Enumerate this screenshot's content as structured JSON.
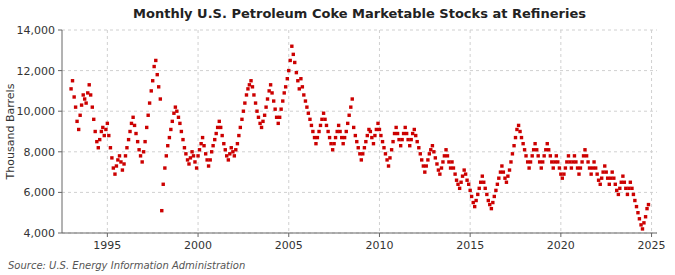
{
  "chart_data": {
    "type": "scatter",
    "title": "Monthly U.S. Petroleum Coke Marketable Stocks at Refineries",
    "y_label": "Thousand Barrels",
    "annotations": [
      "Source: U.S. Energy Information Administration"
    ],
    "color": "#CC0000",
    "marker": "square",
    "grid": true,
    "xlim": [
      1992.5,
      2025.3
    ],
    "ylim": [
      4000,
      14000
    ],
    "xticks": [
      1995,
      2000,
      2005,
      2010,
      2015,
      2020,
      2025
    ],
    "yticks": [
      {
        "value": 4000,
        "label": "4,000"
      },
      {
        "value": 6000,
        "label": "6,000"
      },
      {
        "value": 8000,
        "label": "8,000"
      },
      {
        "value": 10000,
        "label": "10,000"
      },
      {
        "value": 12000,
        "label": "12,000"
      },
      {
        "value": 14000,
        "label": "14,000"
      }
    ],
    "x": [
      1993.0,
      1993.08,
      1993.17,
      1993.25,
      1993.33,
      1993.42,
      1993.5,
      1993.58,
      1993.67,
      1993.75,
      1993.83,
      1993.92,
      1994.0,
      1994.08,
      1994.17,
      1994.25,
      1994.33,
      1994.42,
      1994.5,
      1994.58,
      1994.67,
      1994.75,
      1994.83,
      1994.92,
      1995.0,
      1995.08,
      1995.17,
      1995.25,
      1995.33,
      1995.42,
      1995.5,
      1995.58,
      1995.67,
      1995.75,
      1995.83,
      1995.92,
      1996.0,
      1996.08,
      1996.17,
      1996.25,
      1996.33,
      1996.42,
      1996.5,
      1996.58,
      1996.67,
      1996.75,
      1996.83,
      1996.92,
      1997.0,
      1997.08,
      1997.17,
      1997.25,
      1997.33,
      1997.42,
      1997.5,
      1997.58,
      1997.67,
      1997.75,
      1997.83,
      1997.92,
      1998.0,
      1998.08,
      1998.17,
      1998.25,
      1998.33,
      1998.42,
      1998.5,
      1998.58,
      1998.67,
      1998.75,
      1998.83,
      1998.92,
      1999.0,
      1999.08,
      1999.17,
      1999.25,
      1999.33,
      1999.42,
      1999.5,
      1999.58,
      1999.67,
      1999.75,
      1999.83,
      1999.92,
      2000.0,
      2000.08,
      2000.17,
      2000.25,
      2000.33,
      2000.42,
      2000.5,
      2000.58,
      2000.67,
      2000.75,
      2000.83,
      2000.92,
      2001.0,
      2001.08,
      2001.17,
      2001.25,
      2001.33,
      2001.42,
      2001.5,
      2001.58,
      2001.67,
      2001.75,
      2001.83,
      2001.92,
      2002.0,
      2002.08,
      2002.17,
      2002.25,
      2002.33,
      2002.42,
      2002.5,
      2002.58,
      2002.67,
      2002.75,
      2002.83,
      2002.92,
      2003.0,
      2003.08,
      2003.17,
      2003.25,
      2003.33,
      2003.42,
      2003.5,
      2003.58,
      2003.67,
      2003.75,
      2003.83,
      2003.92,
      2004.0,
      2004.08,
      2004.17,
      2004.25,
      2004.33,
      2004.42,
      2004.5,
      2004.58,
      2004.67,
      2004.75,
      2004.83,
      2004.92,
      2005.0,
      2005.08,
      2005.17,
      2005.25,
      2005.33,
      2005.42,
      2005.5,
      2005.58,
      2005.67,
      2005.75,
      2005.83,
      2005.92,
      2006.0,
      2006.08,
      2006.17,
      2006.25,
      2006.33,
      2006.42,
      2006.5,
      2006.58,
      2006.67,
      2006.75,
      2006.83,
      2006.92,
      2007.0,
      2007.08,
      2007.17,
      2007.25,
      2007.33,
      2007.42,
      2007.5,
      2007.58,
      2007.67,
      2007.75,
      2007.83,
      2007.92,
      2008.0,
      2008.08,
      2008.17,
      2008.25,
      2008.33,
      2008.42,
      2008.5,
      2008.58,
      2008.67,
      2008.75,
      2008.83,
      2008.92,
      2009.0,
      2009.08,
      2009.17,
      2009.25,
      2009.33,
      2009.42,
      2009.5,
      2009.58,
      2009.67,
      2009.75,
      2009.83,
      2009.92,
      2010.0,
      2010.08,
      2010.17,
      2010.25,
      2010.33,
      2010.42,
      2010.5,
      2010.58,
      2010.67,
      2010.75,
      2010.83,
      2010.92,
      2011.0,
      2011.08,
      2011.17,
      2011.25,
      2011.33,
      2011.42,
      2011.5,
      2011.58,
      2011.67,
      2011.75,
      2011.83,
      2011.92,
      2012.0,
      2012.08,
      2012.17,
      2012.25,
      2012.33,
      2012.42,
      2012.5,
      2012.58,
      2012.67,
      2012.75,
      2012.83,
      2012.92,
      2013.0,
      2013.08,
      2013.17,
      2013.25,
      2013.33,
      2013.42,
      2013.5,
      2013.58,
      2013.67,
      2013.75,
      2013.83,
      2013.92,
      2014.0,
      2014.08,
      2014.17,
      2014.25,
      2014.33,
      2014.42,
      2014.5,
      2014.58,
      2014.67,
      2014.75,
      2014.83,
      2014.92,
      2015.0,
      2015.08,
      2015.17,
      2015.25,
      2015.33,
      2015.42,
      2015.5,
      2015.58,
      2015.67,
      2015.75,
      2015.83,
      2015.92,
      2016.0,
      2016.08,
      2016.17,
      2016.25,
      2016.33,
      2016.42,
      2016.5,
      2016.58,
      2016.67,
      2016.75,
      2016.83,
      2016.92,
      2017.0,
      2017.08,
      2017.17,
      2017.25,
      2017.33,
      2017.42,
      2017.5,
      2017.58,
      2017.67,
      2017.75,
      2017.83,
      2017.92,
      2018.0,
      2018.08,
      2018.17,
      2018.25,
      2018.33,
      2018.42,
      2018.5,
      2018.58,
      2018.67,
      2018.75,
      2018.83,
      2018.92,
      2019.0,
      2019.08,
      2019.17,
      2019.25,
      2019.33,
      2019.42,
      2019.5,
      2019.58,
      2019.67,
      2019.75,
      2019.83,
      2019.92,
      2020.0,
      2020.08,
      2020.17,
      2020.25,
      2020.33,
      2020.42,
      2020.5,
      2020.58,
      2020.67,
      2020.75,
      2020.83,
      2020.92,
      2021.0,
      2021.08,
      2021.17,
      2021.25,
      2021.33,
      2021.42,
      2021.5,
      2021.58,
      2021.67,
      2021.75,
      2021.83,
      2021.92,
      2022.0,
      2022.08,
      2022.17,
      2022.25,
      2022.33,
      2022.42,
      2022.5,
      2022.58,
      2022.67,
      2022.75,
      2022.83,
      2022.92,
      2023.0,
      2023.08,
      2023.17,
      2023.25,
      2023.33,
      2023.42,
      2023.5,
      2023.58,
      2023.67,
      2023.75,
      2023.83,
      2023.92,
      2024.0,
      2024.08,
      2024.17,
      2024.25,
      2024.33,
      2024.42,
      2024.5,
      2024.58,
      2024.67,
      2024.75,
      2024.83
    ],
    "values": [
      11100,
      11500,
      10700,
      10200,
      9500,
      9100,
      9800,
      10300,
      10800,
      10600,
      10400,
      10900,
      11300,
      10800,
      10200,
      9600,
      9000,
      8500,
      8200,
      8600,
      9000,
      9200,
      8800,
      9100,
      9400,
      8800,
      8200,
      7700,
      7200,
      6900,
      7300,
      7600,
      7800,
      7500,
      7100,
      7400,
      7800,
      8200,
      8600,
      9000,
      9400,
      9700,
      9300,
      8900,
      8500,
      8100,
      7800,
      7500,
      8000,
      8500,
      9200,
      9800,
      10400,
      11000,
      11500,
      12200,
      12500,
      11800,
      11200,
      10600,
      5100,
      6400,
      7200,
      7800,
      8300,
      8700,
      9100,
      9500,
      9900,
      10200,
      10000,
      9700,
      9400,
      9000,
      8600,
      8200,
      7900,
      7600,
      7400,
      7700,
      8000,
      7800,
      7500,
      7200,
      7800,
      8100,
      8400,
      8700,
      8300,
      7900,
      7600,
      7300,
      7600,
      8000,
      8300,
      8600,
      8900,
      9200,
      9500,
      9200,
      8800,
      8400,
      8100,
      7800,
      7600,
      7900,
      8200,
      8000,
      7800,
      8100,
      8400,
      8800,
      9200,
      9600,
      10000,
      10400,
      10800,
      11100,
      11300,
      11500,
      11200,
      10800,
      10400,
      10000,
      9700,
      9400,
      9200,
      9500,
      9800,
      10200,
      10600,
      11000,
      11300,
      10900,
      10500,
      10100,
      9700,
      9400,
      9700,
      10100,
      10500,
      10900,
      11200,
      11600,
      12000,
      12500,
      13200,
      12800,
      12400,
      11900,
      11500,
      11100,
      11600,
      11200,
      10800,
      10500,
      10200,
      9900,
      9600,
      9300,
      9000,
      8700,
      8400,
      8700,
      9000,
      9300,
      9600,
      9900,
      9600,
      9300,
      9000,
      8700,
      8400,
      8100,
      8400,
      8700,
      9000,
      9300,
      9000,
      8700,
      8400,
      8700,
      9000,
      9400,
      9800,
      10200,
      10600,
      9200,
      8800,
      8500,
      8200,
      7900,
      7600,
      7900,
      8200,
      8500,
      8800,
      9100,
      9000,
      8700,
      8400,
      8800,
      9100,
      9400,
      9100,
      8800,
      8500,
      8200,
      7900,
      7600,
      7300,
      7700,
      8100,
      8500,
      8900,
      9200,
      8900,
      8600,
      8300,
      8600,
      8900,
      9200,
      8900,
      8600,
      8300,
      8600,
      8900,
      9100,
      8800,
      8500,
      8200,
      7900,
      7600,
      7300,
      7000,
      7300,
      7600,
      7900,
      8100,
      8300,
      8000,
      7700,
      7400,
      7100,
      6900,
      7200,
      7500,
      7800,
      8100,
      7800,
      7500,
      7200,
      7500,
      7200,
      6900,
      6600,
      6400,
      6200,
      6500,
      6800,
      7100,
      6900,
      6600,
      6400,
      6100,
      5800,
      5500,
      5300,
      5600,
      5900,
      6200,
      6500,
      6800,
      6500,
      6200,
      5900,
      5600,
      5400,
      5200,
      5500,
      5800,
      6100,
      6400,
      6700,
      7000,
      7300,
      7000,
      6700,
      6500,
      6800,
      7100,
      7500,
      7900,
      8300,
      8700,
      9100,
      9300,
      9000,
      8700,
      8400,
      8100,
      7800,
      7500,
      7200,
      7500,
      7800,
      8100,
      8400,
      8100,
      7800,
      7500,
      7200,
      7500,
      7800,
      8100,
      8400,
      8100,
      7800,
      7500,
      7200,
      7500,
      7800,
      7500,
      7200,
      6900,
      6700,
      6900,
      7200,
      7500,
      7800,
      7500,
      7200,
      7500,
      7800,
      7500,
      7200,
      6900,
      7200,
      7500,
      7800,
      8100,
      7800,
      7500,
      7200,
      6900,
      7200,
      7500,
      7200,
      6900,
      6600,
      6400,
      6700,
      7000,
      7300,
      7000,
      6700,
      6400,
      6700,
      7000,
      6700,
      6400,
      6100,
      5900,
      6200,
      6500,
      6800,
      6500,
      6200,
      5900,
      6200,
      6500,
      6200,
      5900,
      5600,
      5300,
      5000,
      4700,
      4400,
      4200,
      4500,
      4800,
      5200,
      5400
    ]
  }
}
